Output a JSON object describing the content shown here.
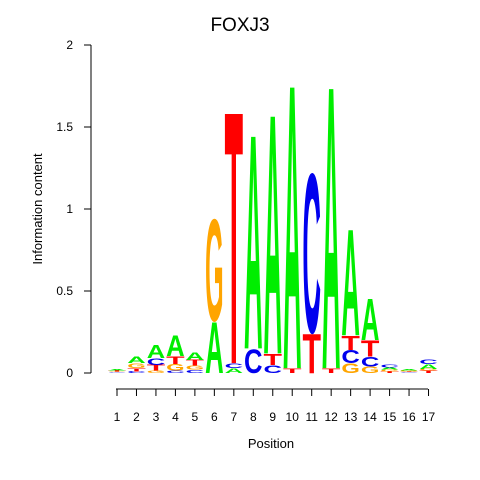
{
  "chart_data": {
    "type": "sequence-logo",
    "title": "FOXJ3",
    "xlabel": "Position",
    "ylabel": "Information content",
    "ylim": [
      0,
      2
    ],
    "y_ticks": [
      "0",
      "0.5",
      "1",
      "1.5",
      "2"
    ],
    "y_tick_values": [
      0,
      0.5,
      1,
      1.5,
      2
    ],
    "positions": [
      "1",
      "2",
      "3",
      "4",
      "5",
      "6",
      "7",
      "8",
      "9",
      "10",
      "11",
      "12",
      "13",
      "14",
      "15",
      "16",
      "17"
    ],
    "colors": {
      "A": "#00ee00",
      "C": "#0000ee",
      "G": "#ffa500",
      "T": "#ff0000"
    },
    "stacks": [
      [
        {
          "l": "C",
          "h": 0.005
        },
        {
          "l": "G",
          "h": 0.005
        },
        {
          "l": "T",
          "h": 0.006
        },
        {
          "l": "A",
          "h": 0.008
        }
      ],
      [
        {
          "l": "C",
          "h": 0.01
        },
        {
          "l": "T",
          "h": 0.02
        },
        {
          "l": "G",
          "h": 0.03
        },
        {
          "l": "A",
          "h": 0.04
        }
      ],
      [
        {
          "l": "G",
          "h": 0.015
        },
        {
          "l": "T",
          "h": 0.035
        },
        {
          "l": "C",
          "h": 0.04
        },
        {
          "l": "A",
          "h": 0.08
        }
      ],
      [
        {
          "l": "C",
          "h": 0.015
        },
        {
          "l": "G",
          "h": 0.04
        },
        {
          "l": "T",
          "h": 0.05
        },
        {
          "l": "A",
          "h": 0.13
        }
      ],
      [
        {
          "l": "C",
          "h": 0.02
        },
        {
          "l": "G",
          "h": 0.025
        },
        {
          "l": "T",
          "h": 0.035
        },
        {
          "l": "A",
          "h": 0.05
        }
      ],
      [
        {
          "l": "A",
          "h": 0.32
        },
        {
          "l": "G",
          "h": 0.64
        }
      ],
      [
        {
          "l": "A",
          "h": 0.03
        },
        {
          "l": "C",
          "h": 0.03
        },
        {
          "l": "T",
          "h": 1.59
        }
      ],
      [
        {
          "l": "C",
          "h": 0.15
        },
        {
          "l": "A",
          "h": 1.35
        }
      ],
      [
        {
          "l": "C",
          "h": 0.05
        },
        {
          "l": "T",
          "h": 0.07
        },
        {
          "l": "A",
          "h": 1.51
        }
      ],
      [
        {
          "l": "T",
          "h": 0.03
        },
        {
          "l": "A",
          "h": 1.79
        }
      ],
      [
        {
          "l": "T",
          "h": 0.25
        },
        {
          "l": "C",
          "h": 1.0
        }
      ],
      [
        {
          "l": "T",
          "h": 0.03
        },
        {
          "l": "A",
          "h": 1.78
        }
      ],
      [
        {
          "l": "G",
          "h": 0.06
        },
        {
          "l": "C",
          "h": 0.08
        },
        {
          "l": "T",
          "h": 0.09
        },
        {
          "l": "A",
          "h": 0.67
        }
      ],
      [
        {
          "l": "G",
          "h": 0.04
        },
        {
          "l": "C",
          "h": 0.06
        },
        {
          "l": "T",
          "h": 0.1
        },
        {
          "l": "A",
          "h": 0.26
        }
      ],
      [
        {
          "l": "T",
          "h": 0.01
        },
        {
          "l": "G",
          "h": 0.01
        },
        {
          "l": "A",
          "h": 0.015
        },
        {
          "l": "C",
          "h": 0.02
        }
      ],
      [
        {
          "l": "C",
          "h": 0.005
        },
        {
          "l": "T",
          "h": 0.005
        },
        {
          "l": "G",
          "h": 0.006
        },
        {
          "l": "A",
          "h": 0.006
        }
      ],
      [
        {
          "l": "T",
          "h": 0.015
        },
        {
          "l": "G",
          "h": 0.01
        },
        {
          "l": "A",
          "h": 0.03
        },
        {
          "l": "C",
          "h": 0.03
        }
      ]
    ]
  }
}
